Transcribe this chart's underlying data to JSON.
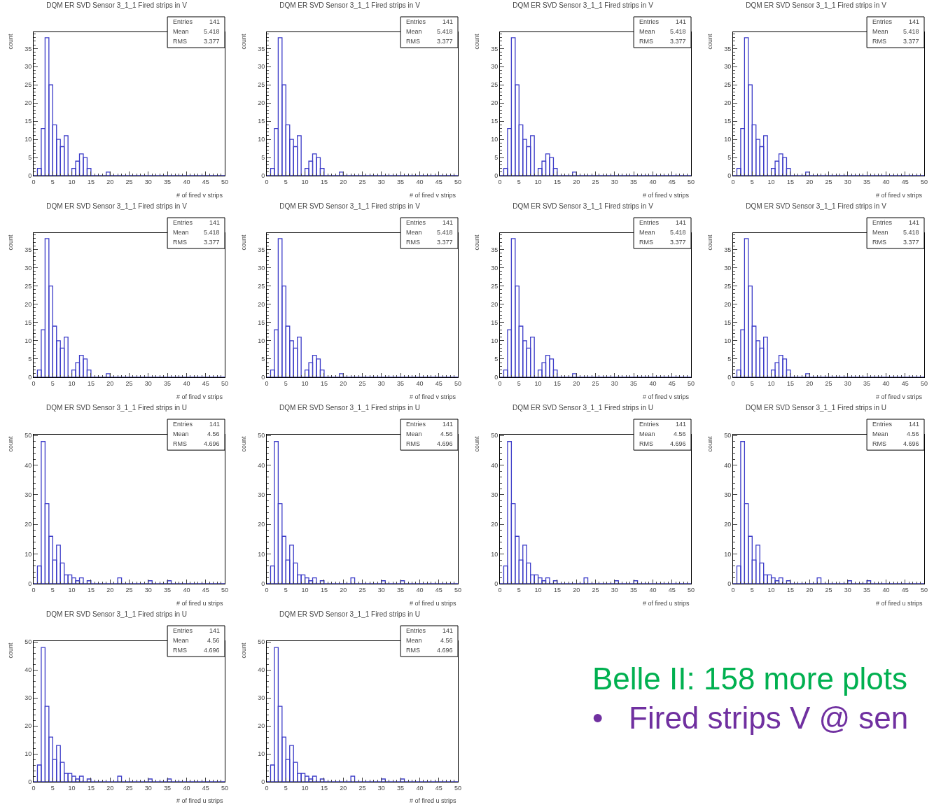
{
  "chart_data": [
    {
      "type": "histogram",
      "title": "DQM ER SVD Sensor 3_1_1 Fired strips in V",
      "xlabel": "# of fired v strips",
      "ylabel": "count",
      "color": "#3b3bc8",
      "bins": [
        0,
        1,
        2,
        3,
        4,
        5,
        6,
        7,
        8,
        9,
        10,
        11,
        12,
        13,
        14,
        15,
        16,
        17,
        18,
        19,
        20,
        21,
        22,
        23,
        24,
        25,
        26,
        27,
        28,
        29,
        30,
        31,
        32,
        33,
        34,
        35,
        36,
        37,
        38,
        39,
        40,
        41,
        42,
        43,
        44,
        45,
        46,
        47,
        48,
        49,
        50
      ],
      "values": [
        0,
        2,
        13,
        38,
        25,
        14,
        10,
        8,
        11,
        0,
        2,
        4,
        6,
        5,
        2,
        0,
        0,
        0,
        0,
        1,
        0,
        0,
        0,
        0,
        0,
        0,
        0,
        0,
        0,
        0,
        0,
        0,
        0,
        0,
        0,
        0,
        0,
        0,
        0,
        0,
        0,
        0,
        0,
        0,
        0,
        0,
        0,
        0,
        0,
        0
      ],
      "xlim": [
        0,
        50
      ],
      "ylim": [
        0,
        39.5
      ],
      "xticks": [
        0,
        5,
        10,
        15,
        20,
        25,
        30,
        35,
        40,
        45,
        50
      ],
      "yticks": [
        0,
        5,
        10,
        15,
        20,
        25,
        30,
        35
      ],
      "annotations": [
        "Entries 141",
        "Mean 5.418",
        "RMS 3.377"
      ]
    },
    {
      "type": "histogram",
      "title": "DQM ER SVD Sensor 3_1_1 Fired strips in V",
      "xlabel": "# of fired v strips",
      "ylabel": "count",
      "color": "#3b3bc8",
      "bins": [
        0,
        1,
        2,
        3,
        4,
        5,
        6,
        7,
        8,
        9,
        10,
        11,
        12,
        13,
        14,
        15,
        16,
        17,
        18,
        19,
        20,
        21,
        22,
        23,
        24,
        25,
        26,
        27,
        28,
        29,
        30,
        31,
        32,
        33,
        34,
        35,
        36,
        37,
        38,
        39,
        40,
        41,
        42,
        43,
        44,
        45,
        46,
        47,
        48,
        49,
        50
      ],
      "values": [
        0,
        2,
        13,
        38,
        25,
        14,
        10,
        8,
        11,
        0,
        2,
        4,
        6,
        5,
        2,
        0,
        0,
        0,
        0,
        1,
        0,
        0,
        0,
        0,
        0,
        0,
        0,
        0,
        0,
        0,
        0,
        0,
        0,
        0,
        0,
        0,
        0,
        0,
        0,
        0,
        0,
        0,
        0,
        0,
        0,
        0,
        0,
        0,
        0,
        0
      ],
      "xlim": [
        0,
        50
      ],
      "ylim": [
        0,
        39.5
      ],
      "xticks": [
        0,
        5,
        10,
        15,
        20,
        25,
        30,
        35,
        40,
        45,
        50
      ],
      "yticks": [
        0,
        5,
        10,
        15,
        20,
        25,
        30,
        35
      ],
      "annotations": [
        "Entries 141",
        "Mean 5.418",
        "RMS 3.377"
      ]
    },
    {
      "type": "histogram",
      "title": "DQM ER SVD Sensor 3_1_1 Fired strips in V",
      "xlabel": "# of fired v strips",
      "ylabel": "count",
      "color": "#3b3bc8",
      "bins": [
        0,
        1,
        2,
        3,
        4,
        5,
        6,
        7,
        8,
        9,
        10,
        11,
        12,
        13,
        14,
        15,
        16,
        17,
        18,
        19,
        20,
        21,
        22,
        23,
        24,
        25,
        26,
        27,
        28,
        29,
        30,
        31,
        32,
        33,
        34,
        35,
        36,
        37,
        38,
        39,
        40,
        41,
        42,
        43,
        44,
        45,
        46,
        47,
        48,
        49,
        50
      ],
      "values": [
        0,
        2,
        13,
        38,
        25,
        14,
        10,
        8,
        11,
        0,
        2,
        4,
        6,
        5,
        2,
        0,
        0,
        0,
        0,
        1,
        0,
        0,
        0,
        0,
        0,
        0,
        0,
        0,
        0,
        0,
        0,
        0,
        0,
        0,
        0,
        0,
        0,
        0,
        0,
        0,
        0,
        0,
        0,
        0,
        0,
        0,
        0,
        0,
        0,
        0
      ],
      "xlim": [
        0,
        50
      ],
      "ylim": [
        0,
        39.5
      ],
      "xticks": [
        0,
        5,
        10,
        15,
        20,
        25,
        30,
        35,
        40,
        45,
        50
      ],
      "yticks": [
        0,
        5,
        10,
        15,
        20,
        25,
        30,
        35
      ],
      "annotations": [
        "Entries 141",
        "Mean 5.418",
        "RMS 3.377"
      ]
    },
    {
      "type": "histogram",
      "title": "DQM ER SVD Sensor 3_1_1 Fired strips in V",
      "xlabel": "# of fired v strips",
      "ylabel": "count",
      "color": "#3b3bc8",
      "bins": [
        0,
        1,
        2,
        3,
        4,
        5,
        6,
        7,
        8,
        9,
        10,
        11,
        12,
        13,
        14,
        15,
        16,
        17,
        18,
        19,
        20,
        21,
        22,
        23,
        24,
        25,
        26,
        27,
        28,
        29,
        30,
        31,
        32,
        33,
        34,
        35,
        36,
        37,
        38,
        39,
        40,
        41,
        42,
        43,
        44,
        45,
        46,
        47,
        48,
        49,
        50
      ],
      "values": [
        0,
        2,
        13,
        38,
        25,
        14,
        10,
        8,
        11,
        0,
        2,
        4,
        6,
        5,
        2,
        0,
        0,
        0,
        0,
        1,
        0,
        0,
        0,
        0,
        0,
        0,
        0,
        0,
        0,
        0,
        0,
        0,
        0,
        0,
        0,
        0,
        0,
        0,
        0,
        0,
        0,
        0,
        0,
        0,
        0,
        0,
        0,
        0,
        0,
        0
      ],
      "xlim": [
        0,
        50
      ],
      "ylim": [
        0,
        39.5
      ],
      "xticks": [
        0,
        5,
        10,
        15,
        20,
        25,
        30,
        35,
        40,
        45,
        50
      ],
      "yticks": [
        0,
        5,
        10,
        15,
        20,
        25,
        30,
        35
      ],
      "annotations": [
        "Entries 141",
        "Mean 5.418",
        "RMS 3.377"
      ]
    },
    {
      "type": "histogram",
      "title": "DQM ER SVD Sensor 3_1_1 Fired strips in V",
      "xlabel": "# of fired v strips",
      "ylabel": "count",
      "color": "#3b3bc8",
      "bins": [
        0,
        1,
        2,
        3,
        4,
        5,
        6,
        7,
        8,
        9,
        10,
        11,
        12,
        13,
        14,
        15,
        16,
        17,
        18,
        19,
        20,
        21,
        22,
        23,
        24,
        25,
        26,
        27,
        28,
        29,
        30,
        31,
        32,
        33,
        34,
        35,
        36,
        37,
        38,
        39,
        40,
        41,
        42,
        43,
        44,
        45,
        46,
        47,
        48,
        49,
        50
      ],
      "values": [
        0,
        2,
        13,
        38,
        25,
        14,
        10,
        8,
        11,
        0,
        2,
        4,
        6,
        5,
        2,
        0,
        0,
        0,
        0,
        1,
        0,
        0,
        0,
        0,
        0,
        0,
        0,
        0,
        0,
        0,
        0,
        0,
        0,
        0,
        0,
        0,
        0,
        0,
        0,
        0,
        0,
        0,
        0,
        0,
        0,
        0,
        0,
        0,
        0,
        0
      ],
      "xlim": [
        0,
        50
      ],
      "ylim": [
        0,
        39.5
      ],
      "xticks": [
        0,
        5,
        10,
        15,
        20,
        25,
        30,
        35,
        40,
        45,
        50
      ],
      "yticks": [
        0,
        5,
        10,
        15,
        20,
        25,
        30,
        35
      ],
      "annotations": [
        "Entries 141",
        "Mean 5.418",
        "RMS 3.377"
      ]
    },
    {
      "type": "histogram",
      "title": "DQM ER SVD Sensor 3_1_1 Fired strips in V",
      "xlabel": "# of fired v strips",
      "ylabel": "count",
      "color": "#3b3bc8",
      "bins": [
        0,
        1,
        2,
        3,
        4,
        5,
        6,
        7,
        8,
        9,
        10,
        11,
        12,
        13,
        14,
        15,
        16,
        17,
        18,
        19,
        20,
        21,
        22,
        23,
        24,
        25,
        26,
        27,
        28,
        29,
        30,
        31,
        32,
        33,
        34,
        35,
        36,
        37,
        38,
        39,
        40,
        41,
        42,
        43,
        44,
        45,
        46,
        47,
        48,
        49,
        50
      ],
      "values": [
        0,
        2,
        13,
        38,
        25,
        14,
        10,
        8,
        11,
        0,
        2,
        4,
        6,
        5,
        2,
        0,
        0,
        0,
        0,
        1,
        0,
        0,
        0,
        0,
        0,
        0,
        0,
        0,
        0,
        0,
        0,
        0,
        0,
        0,
        0,
        0,
        0,
        0,
        0,
        0,
        0,
        0,
        0,
        0,
        0,
        0,
        0,
        0,
        0,
        0
      ],
      "xlim": [
        0,
        50
      ],
      "ylim": [
        0,
        39.5
      ],
      "xticks": [
        0,
        5,
        10,
        15,
        20,
        25,
        30,
        35,
        40,
        45,
        50
      ],
      "yticks": [
        0,
        5,
        10,
        15,
        20,
        25,
        30,
        35
      ],
      "annotations": [
        "Entries 141",
        "Mean 5.418",
        "RMS 3.377"
      ]
    },
    {
      "type": "histogram",
      "title": "DQM ER SVD Sensor 3_1_1 Fired strips in V",
      "xlabel": "# of fired v strips",
      "ylabel": "count",
      "color": "#3b3bc8",
      "bins": [
        0,
        1,
        2,
        3,
        4,
        5,
        6,
        7,
        8,
        9,
        10,
        11,
        12,
        13,
        14,
        15,
        16,
        17,
        18,
        19,
        20,
        21,
        22,
        23,
        24,
        25,
        26,
        27,
        28,
        29,
        30,
        31,
        32,
        33,
        34,
        35,
        36,
        37,
        38,
        39,
        40,
        41,
        42,
        43,
        44,
        45,
        46,
        47,
        48,
        49,
        50
      ],
      "values": [
        0,
        2,
        13,
        38,
        25,
        14,
        10,
        8,
        11,
        0,
        2,
        4,
        6,
        5,
        2,
        0,
        0,
        0,
        0,
        1,
        0,
        0,
        0,
        0,
        0,
        0,
        0,
        0,
        0,
        0,
        0,
        0,
        0,
        0,
        0,
        0,
        0,
        0,
        0,
        0,
        0,
        0,
        0,
        0,
        0,
        0,
        0,
        0,
        0,
        0
      ],
      "xlim": [
        0,
        50
      ],
      "ylim": [
        0,
        39.5
      ],
      "xticks": [
        0,
        5,
        10,
        15,
        20,
        25,
        30,
        35,
        40,
        45,
        50
      ],
      "yticks": [
        0,
        5,
        10,
        15,
        20,
        25,
        30,
        35
      ],
      "annotations": [
        "Entries 141",
        "Mean 5.418",
        "RMS 3.377"
      ]
    },
    {
      "type": "histogram",
      "title": "DQM ER SVD Sensor 3_1_1 Fired strips in V",
      "xlabel": "# of fired v strips",
      "ylabel": "count",
      "color": "#3b3bc8",
      "bins": [
        0,
        1,
        2,
        3,
        4,
        5,
        6,
        7,
        8,
        9,
        10,
        11,
        12,
        13,
        14,
        15,
        16,
        17,
        18,
        19,
        20,
        21,
        22,
        23,
        24,
        25,
        26,
        27,
        28,
        29,
        30,
        31,
        32,
        33,
        34,
        35,
        36,
        37,
        38,
        39,
        40,
        41,
        42,
        43,
        44,
        45,
        46,
        47,
        48,
        49,
        50
      ],
      "values": [
        0,
        2,
        13,
        38,
        25,
        14,
        10,
        8,
        11,
        0,
        2,
        4,
        6,
        5,
        2,
        0,
        0,
        0,
        0,
        1,
        0,
        0,
        0,
        0,
        0,
        0,
        0,
        0,
        0,
        0,
        0,
        0,
        0,
        0,
        0,
        0,
        0,
        0,
        0,
        0,
        0,
        0,
        0,
        0,
        0,
        0,
        0,
        0,
        0,
        0
      ],
      "xlim": [
        0,
        50
      ],
      "ylim": [
        0,
        39.5
      ],
      "xticks": [
        0,
        5,
        10,
        15,
        20,
        25,
        30,
        35,
        40,
        45,
        50
      ],
      "yticks": [
        0,
        5,
        10,
        15,
        20,
        25,
        30,
        35
      ],
      "annotations": [
        "Entries 141",
        "Mean 5.418",
        "RMS 3.377"
      ]
    },
    {
      "type": "histogram",
      "title": "DQM ER SVD Sensor 3_1_1 Fired strips in U",
      "xlabel": "# of fired u strips",
      "ylabel": "count",
      "color": "#3b3bc8",
      "bins": [
        0,
        1,
        2,
        3,
        4,
        5,
        6,
        7,
        8,
        9,
        10,
        11,
        12,
        13,
        14,
        15,
        16,
        17,
        18,
        19,
        20,
        21,
        22,
        23,
        24,
        25,
        26,
        27,
        28,
        29,
        30,
        31,
        32,
        33,
        34,
        35,
        36,
        37,
        38,
        39,
        40,
        41,
        42,
        43,
        44,
        45,
        46,
        47,
        48,
        49,
        50
      ],
      "values": [
        0,
        6,
        48,
        27,
        16,
        8,
        13,
        7,
        3,
        3,
        2,
        1,
        2,
        0,
        1,
        0,
        0,
        0,
        0,
        0,
        0,
        0,
        2,
        0,
        0,
        0,
        0,
        0,
        0,
        0,
        1,
        0,
        0,
        0,
        0,
        1,
        0,
        0,
        0,
        0,
        0,
        0,
        0,
        0,
        0,
        0,
        0,
        0,
        0,
        0
      ],
      "xlim": [
        0,
        50
      ],
      "ylim": [
        0,
        50.3
      ],
      "xticks": [
        0,
        5,
        10,
        15,
        20,
        25,
        30,
        35,
        40,
        45,
        50
      ],
      "yticks": [
        0,
        10,
        20,
        30,
        40,
        50
      ],
      "annotations": [
        "Entries 141",
        "Mean 4.56",
        "RMS 4.696"
      ]
    },
    {
      "type": "histogram",
      "title": "DQM ER SVD Sensor 3_1_1 Fired strips in U",
      "xlabel": "# of fired u strips",
      "ylabel": "count",
      "color": "#3b3bc8",
      "bins": [
        0,
        1,
        2,
        3,
        4,
        5,
        6,
        7,
        8,
        9,
        10,
        11,
        12,
        13,
        14,
        15,
        16,
        17,
        18,
        19,
        20,
        21,
        22,
        23,
        24,
        25,
        26,
        27,
        28,
        29,
        30,
        31,
        32,
        33,
        34,
        35,
        36,
        37,
        38,
        39,
        40,
        41,
        42,
        43,
        44,
        45,
        46,
        47,
        48,
        49,
        50
      ],
      "values": [
        0,
        6,
        48,
        27,
        16,
        8,
        13,
        7,
        3,
        3,
        2,
        1,
        2,
        0,
        1,
        0,
        0,
        0,
        0,
        0,
        0,
        0,
        2,
        0,
        0,
        0,
        0,
        0,
        0,
        0,
        1,
        0,
        0,
        0,
        0,
        1,
        0,
        0,
        0,
        0,
        0,
        0,
        0,
        0,
        0,
        0,
        0,
        0,
        0,
        0
      ],
      "xlim": [
        0,
        50
      ],
      "ylim": [
        0,
        50.3
      ],
      "xticks": [
        0,
        5,
        10,
        15,
        20,
        25,
        30,
        35,
        40,
        45,
        50
      ],
      "yticks": [
        0,
        10,
        20,
        30,
        40,
        50
      ],
      "annotations": [
        "Entries 141",
        "Mean 4.56",
        "RMS 4.696"
      ]
    },
    {
      "type": "histogram",
      "title": "DQM ER SVD Sensor 3_1_1 Fired strips in U",
      "xlabel": "# of fired u strips",
      "ylabel": "count",
      "color": "#3b3bc8",
      "bins": [
        0,
        1,
        2,
        3,
        4,
        5,
        6,
        7,
        8,
        9,
        10,
        11,
        12,
        13,
        14,
        15,
        16,
        17,
        18,
        19,
        20,
        21,
        22,
        23,
        24,
        25,
        26,
        27,
        28,
        29,
        30,
        31,
        32,
        33,
        34,
        35,
        36,
        37,
        38,
        39,
        40,
        41,
        42,
        43,
        44,
        45,
        46,
        47,
        48,
        49,
        50
      ],
      "values": [
        0,
        6,
        48,
        27,
        16,
        8,
        13,
        7,
        3,
        3,
        2,
        1,
        2,
        0,
        1,
        0,
        0,
        0,
        0,
        0,
        0,
        0,
        2,
        0,
        0,
        0,
        0,
        0,
        0,
        0,
        1,
        0,
        0,
        0,
        0,
        1,
        0,
        0,
        0,
        0,
        0,
        0,
        0,
        0,
        0,
        0,
        0,
        0,
        0,
        0
      ],
      "xlim": [
        0,
        50
      ],
      "ylim": [
        0,
        50.3
      ],
      "xticks": [
        0,
        5,
        10,
        15,
        20,
        25,
        30,
        35,
        40,
        45,
        50
      ],
      "yticks": [
        0,
        10,
        20,
        30,
        40,
        50
      ],
      "annotations": [
        "Entries 141",
        "Mean 4.56",
        "RMS 4.696"
      ]
    },
    {
      "type": "histogram",
      "title": "DQM ER SVD Sensor 3_1_1 Fired strips in U",
      "xlabel": "# of fired u strips",
      "ylabel": "count",
      "color": "#3b3bc8",
      "bins": [
        0,
        1,
        2,
        3,
        4,
        5,
        6,
        7,
        8,
        9,
        10,
        11,
        12,
        13,
        14,
        15,
        16,
        17,
        18,
        19,
        20,
        21,
        22,
        23,
        24,
        25,
        26,
        27,
        28,
        29,
        30,
        31,
        32,
        33,
        34,
        35,
        36,
        37,
        38,
        39,
        40,
        41,
        42,
        43,
        44,
        45,
        46,
        47,
        48,
        49,
        50
      ],
      "values": [
        0,
        6,
        48,
        27,
        16,
        8,
        13,
        7,
        3,
        3,
        2,
        1,
        2,
        0,
        1,
        0,
        0,
        0,
        0,
        0,
        0,
        0,
        2,
        0,
        0,
        0,
        0,
        0,
        0,
        0,
        1,
        0,
        0,
        0,
        0,
        1,
        0,
        0,
        0,
        0,
        0,
        0,
        0,
        0,
        0,
        0,
        0,
        0,
        0,
        0
      ],
      "xlim": [
        0,
        50
      ],
      "ylim": [
        0,
        50.3
      ],
      "xticks": [
        0,
        5,
        10,
        15,
        20,
        25,
        30,
        35,
        40,
        45,
        50
      ],
      "yticks": [
        0,
        10,
        20,
        30,
        40,
        50
      ],
      "annotations": [
        "Entries 141",
        "Mean 4.56",
        "RMS 4.696"
      ]
    },
    {
      "type": "histogram",
      "title": "DQM ER SVD Sensor 3_1_1 Fired strips in U",
      "xlabel": "# of fired u strips",
      "ylabel": "count",
      "color": "#3b3bc8",
      "bins": [
        0,
        1,
        2,
        3,
        4,
        5,
        6,
        7,
        8,
        9,
        10,
        11,
        12,
        13,
        14,
        15,
        16,
        17,
        18,
        19,
        20,
        21,
        22,
        23,
        24,
        25,
        26,
        27,
        28,
        29,
        30,
        31,
        32,
        33,
        34,
        35,
        36,
        37,
        38,
        39,
        40,
        41,
        42,
        43,
        44,
        45,
        46,
        47,
        48,
        49,
        50
      ],
      "values": [
        0,
        6,
        48,
        27,
        16,
        8,
        13,
        7,
        3,
        3,
        2,
        1,
        2,
        0,
        1,
        0,
        0,
        0,
        0,
        0,
        0,
        0,
        2,
        0,
        0,
        0,
        0,
        0,
        0,
        0,
        1,
        0,
        0,
        0,
        0,
        1,
        0,
        0,
        0,
        0,
        0,
        0,
        0,
        0,
        0,
        0,
        0,
        0,
        0,
        0
      ],
      "xlim": [
        0,
        50
      ],
      "ylim": [
        0,
        50.3
      ],
      "xticks": [
        0,
        5,
        10,
        15,
        20,
        25,
        30,
        35,
        40,
        45,
        50
      ],
      "yticks": [
        0,
        10,
        20,
        30,
        40,
        50
      ],
      "annotations": [
        "Entries 141",
        "Mean 4.56",
        "RMS 4.696"
      ]
    },
    {
      "type": "histogram",
      "title": "DQM ER SVD Sensor 3_1_1 Fired strips in U",
      "xlabel": "# of fired u strips",
      "ylabel": "count",
      "color": "#3b3bc8",
      "bins": [
        0,
        1,
        2,
        3,
        4,
        5,
        6,
        7,
        8,
        9,
        10,
        11,
        12,
        13,
        14,
        15,
        16,
        17,
        18,
        19,
        20,
        21,
        22,
        23,
        24,
        25,
        26,
        27,
        28,
        29,
        30,
        31,
        32,
        33,
        34,
        35,
        36,
        37,
        38,
        39,
        40,
        41,
        42,
        43,
        44,
        45,
        46,
        47,
        48,
        49,
        50
      ],
      "values": [
        0,
        6,
        48,
        27,
        16,
        8,
        13,
        7,
        3,
        3,
        2,
        1,
        2,
        0,
        1,
        0,
        0,
        0,
        0,
        0,
        0,
        0,
        2,
        0,
        0,
        0,
        0,
        0,
        0,
        0,
        1,
        0,
        0,
        0,
        0,
        1,
        0,
        0,
        0,
        0,
        0,
        0,
        0,
        0,
        0,
        0,
        0,
        0,
        0,
        0
      ],
      "xlim": [
        0,
        50
      ],
      "ylim": [
        0,
        50.3
      ],
      "xticks": [
        0,
        5,
        10,
        15,
        20,
        25,
        30,
        35,
        40,
        45,
        50
      ],
      "yticks": [
        0,
        10,
        20,
        30,
        40,
        50
      ],
      "annotations": [
        "Entries 141",
        "Mean 4.56",
        "RMS 4.696"
      ]
    },
    {
      "type": "other",
      "annotations": [
        "Belle II: 158 more plots",
        "•   Fired strips V @ sen"
      ]
    }
  ]
}
